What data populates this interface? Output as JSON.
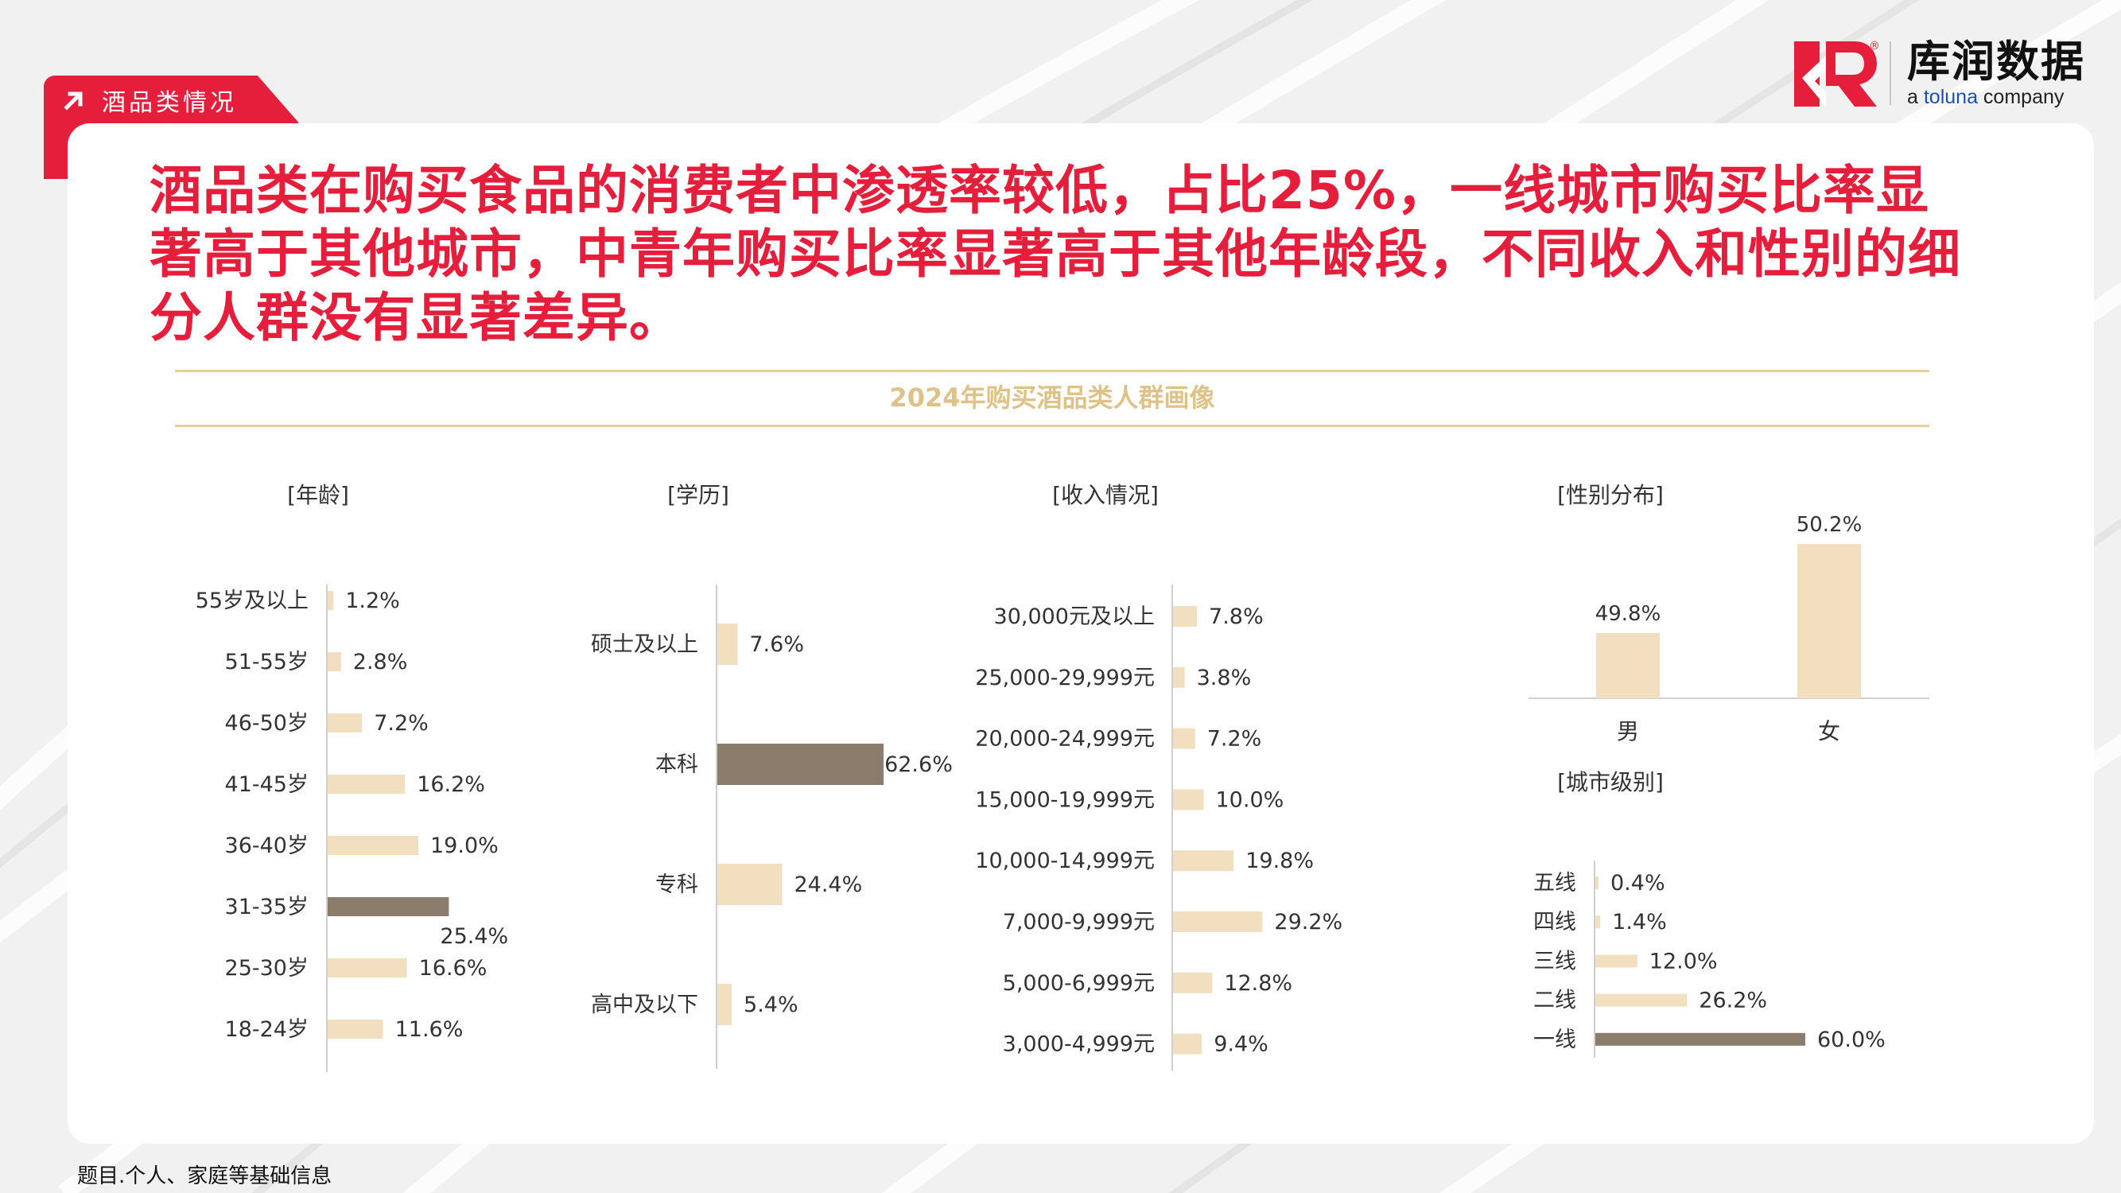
{
  "section_tab": "酒品类情况",
  "brand": {
    "name_cn": "库润数据",
    "name_en_prefix": "a ",
    "name_en_brand": "toluna",
    "name_en_suffix": " company",
    "accent": "#e51e3c"
  },
  "headline": "酒品类在购买食品的消费者中渗透率较低，占比25%，一线城市购买比率显著高于其他城市，中青年购买比率显著高于其他年龄段，不同收入和性别的细分人群没有显著差异。",
  "band_title": "2024年购买酒品类人群画像",
  "footnote": "题目.个人、家庭等基础信息",
  "colors": {
    "bar": "#f2dfc0",
    "highlight": "#8b7c6b",
    "axis": "#d0d0d0",
    "band": "#e6cf9c",
    "band_title": "#dfc287"
  },
  "chart_data": [
    {
      "type": "bar",
      "orientation": "horizontal",
      "title": "[年龄]",
      "categories": [
        "55岁及以上",
        "51-55岁",
        "46-50岁",
        "41-45岁",
        "36-40岁",
        "31-35岁",
        "25-30岁",
        "18-24岁"
      ],
      "values": [
        1.2,
        2.8,
        7.2,
        16.2,
        19.0,
        25.4,
        16.6,
        11.6
      ],
      "labels": [
        "1.2%",
        "2.8%",
        "7.2%",
        "16.2%",
        "19.0%",
        "25.4%",
        "16.6%",
        "11.6%"
      ],
      "highlight": "31-35岁"
    },
    {
      "type": "bar",
      "orientation": "horizontal",
      "title": "[学历]",
      "categories": [
        "硕士及以上",
        "本科",
        "专科",
        "高中及以下"
      ],
      "values": [
        7.6,
        62.6,
        24.4,
        5.4
      ],
      "labels": [
        "7.6%",
        "62.6%",
        "24.4%",
        "5.4%"
      ],
      "highlight": "本科"
    },
    {
      "type": "bar",
      "orientation": "horizontal",
      "title": "[收入情况]",
      "categories": [
        "30,000元及以上",
        "25,000-29,999元",
        "20,000-24,999元",
        "15,000-19,999元",
        "10,000-14,999元",
        "7,000-9,999元",
        "5,000-6,999元",
        "3,000-4,999元"
      ],
      "values": [
        7.8,
        3.8,
        7.2,
        10.0,
        19.8,
        29.2,
        12.8,
        9.4
      ],
      "labels": [
        "7.8%",
        "3.8%",
        "7.2%",
        "10.0%",
        "19.8%",
        "29.2%",
        "12.8%",
        "9.4%"
      ],
      "highlight": null
    },
    {
      "type": "bar",
      "orientation": "vertical",
      "title": "[性别分布]",
      "categories": [
        "男",
        "女"
      ],
      "values": [
        49.8,
        50.2
      ],
      "labels": [
        "49.8%",
        "50.2%"
      ],
      "highlight": null
    },
    {
      "type": "bar",
      "orientation": "horizontal",
      "title": "[城市级别]",
      "categories": [
        "五线",
        "四线",
        "三线",
        "二线",
        "一线"
      ],
      "values": [
        0.4,
        1.4,
        12.0,
        26.2,
        60.0
      ],
      "labels": [
        "0.4%",
        "1.4%",
        "12.0%",
        "26.2%",
        "60.0%"
      ],
      "highlight": "一线"
    }
  ]
}
